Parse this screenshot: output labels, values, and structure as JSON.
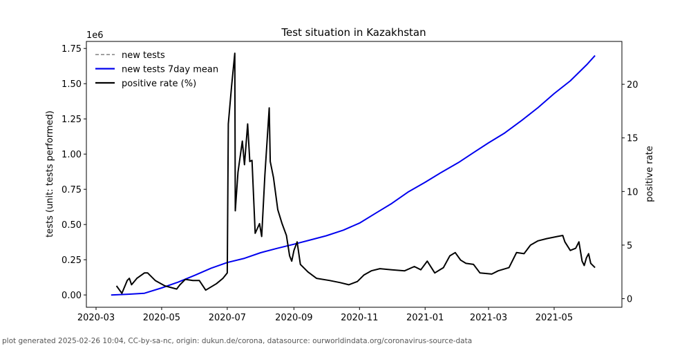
{
  "footer": "plot generated 2025-02-26 10:04, CC-by-sa-nc, origin: dukun.de/corona, datasource: ourworldindata.org/coronavirus-source-data",
  "chart_data": {
    "type": "line",
    "title": "Test situation in Kazakhstan",
    "xlabel": "",
    "ylabel": "tests (unit: tests performed)",
    "ylabel_right": "positive rate",
    "y_offset_label": "1e6",
    "x_origin_date": "2020-03-01",
    "x_unit": "days since 2020-03-01",
    "xlim": [
      -9,
      489
    ],
    "ylim": [
      -0.0875,
      1.8
    ],
    "ylim_right": [
      -0.8,
      24.0
    ],
    "xticks": [
      {
        "day": 0,
        "label": "2020-03"
      },
      {
        "day": 61,
        "label": "2020-05"
      },
      {
        "day": 122,
        "label": "2020-07"
      },
      {
        "day": 184,
        "label": "2020-09"
      },
      {
        "day": 245,
        "label": "2020-11"
      },
      {
        "day": 306,
        "label": "2021-01"
      },
      {
        "day": 365,
        "label": "2021-03"
      },
      {
        "day": 426,
        "label": "2021-05"
      }
    ],
    "yticks": [
      {
        "v": 0,
        "label": "0.00"
      },
      {
        "v": 0.25,
        "label": "0.25"
      },
      {
        "v": 0.5,
        "label": "0.50"
      },
      {
        "v": 0.75,
        "label": "0.75"
      },
      {
        "v": 1.0,
        "label": "1.00"
      },
      {
        "v": 1.25,
        "label": "1.25"
      },
      {
        "v": 1.5,
        "label": "1.50"
      },
      {
        "v": 1.75,
        "label": "1.75"
      }
    ],
    "yticks_right": [
      {
        "v": 0,
        "label": "0"
      },
      {
        "v": 5,
        "label": "5"
      },
      {
        "v": 10,
        "label": "10"
      },
      {
        "v": 15,
        "label": "15"
      },
      {
        "v": 20,
        "label": "20"
      }
    ],
    "legend": {
      "placement": "top-left",
      "entries": [
        {
          "label": "new tests",
          "color": "#808080",
          "style": "dashed"
        },
        {
          "label": "new tests 7day mean",
          "color": "#0000ee",
          "style": "solid"
        },
        {
          "label": "positive rate (%)",
          "color": "#000000",
          "style": "solid"
        }
      ]
    },
    "series": [
      {
        "name": "new tests 7day mean",
        "axis": "left",
        "color": "#0000ee",
        "x": [
          14,
          30,
          45,
          61,
          76,
          92,
          107,
          122,
          138,
          153,
          168,
          184,
          199,
          214,
          230,
          245,
          260,
          275,
          290,
          306,
          321,
          337,
          351,
          365,
          380,
          396,
          411,
          426,
          441,
          457,
          464
        ],
        "y": [
          0.0,
          0.005,
          0.012,
          0.05,
          0.09,
          0.14,
          0.19,
          0.23,
          0.26,
          0.3,
          0.33,
          0.36,
          0.39,
          0.42,
          0.46,
          0.51,
          0.58,
          0.65,
          0.73,
          0.8,
          0.87,
          0.94,
          1.01,
          1.08,
          1.15,
          1.24,
          1.33,
          1.43,
          1.52,
          1.64,
          1.7
        ]
      },
      {
        "name": "positive rate (%)",
        "axis": "right",
        "color": "#000000",
        "x": [
          19,
          24,
          29,
          31,
          33,
          38,
          45,
          48,
          55,
          64,
          75,
          78,
          83,
          90,
          96,
          102,
          112,
          118,
          122,
          123,
          126,
          129,
          129.5,
          132,
          136,
          138,
          141,
          143,
          145,
          148,
          152,
          154,
          157,
          161,
          162,
          165,
          169,
          173,
          177,
          180,
          182,
          184,
          187,
          190,
          197,
          205,
          217,
          227,
          235,
          243,
          249,
          256,
          264,
          275,
          287,
          296,
          302,
          308,
          315,
          323,
          329,
          334,
          339,
          344,
          351,
          357,
          368,
          374,
          384,
          391,
          398,
          404,
          411,
          419,
          429,
          434,
          436,
          441,
          446,
          449,
          452,
          454,
          456,
          458,
          460,
          464
        ],
        "y": [
          1.2,
          0.5,
          1.7,
          1.9,
          1.3,
          1.9,
          2.4,
          2.4,
          1.7,
          1.2,
          0.9,
          1.3,
          1.8,
          1.7,
          1.7,
          0.8,
          1.4,
          1.9,
          2.4,
          16.3,
          19.8,
          22.9,
          8.2,
          11.8,
          14.7,
          12.5,
          16.3,
          12.8,
          12.9,
          6.1,
          7.0,
          5.8,
          11.5,
          17.8,
          12.8,
          11.3,
          8.3,
          7.0,
          5.9,
          4.0,
          3.5,
          4.5,
          5.3,
          3.2,
          2.5,
          1.9,
          1.7,
          1.5,
          1.3,
          1.6,
          2.2,
          2.6,
          2.8,
          2.7,
          2.6,
          3.0,
          2.7,
          3.5,
          2.4,
          2.9,
          4.0,
          4.3,
          3.6,
          3.3,
          3.2,
          2.4,
          2.3,
          2.6,
          2.9,
          4.3,
          4.2,
          5.0,
          5.4,
          5.6,
          5.8,
          5.9,
          5.3,
          4.5,
          4.7,
          5.3,
          3.5,
          3.1,
          3.8,
          4.2,
          3.3,
          2.9
        ]
      }
    ]
  }
}
